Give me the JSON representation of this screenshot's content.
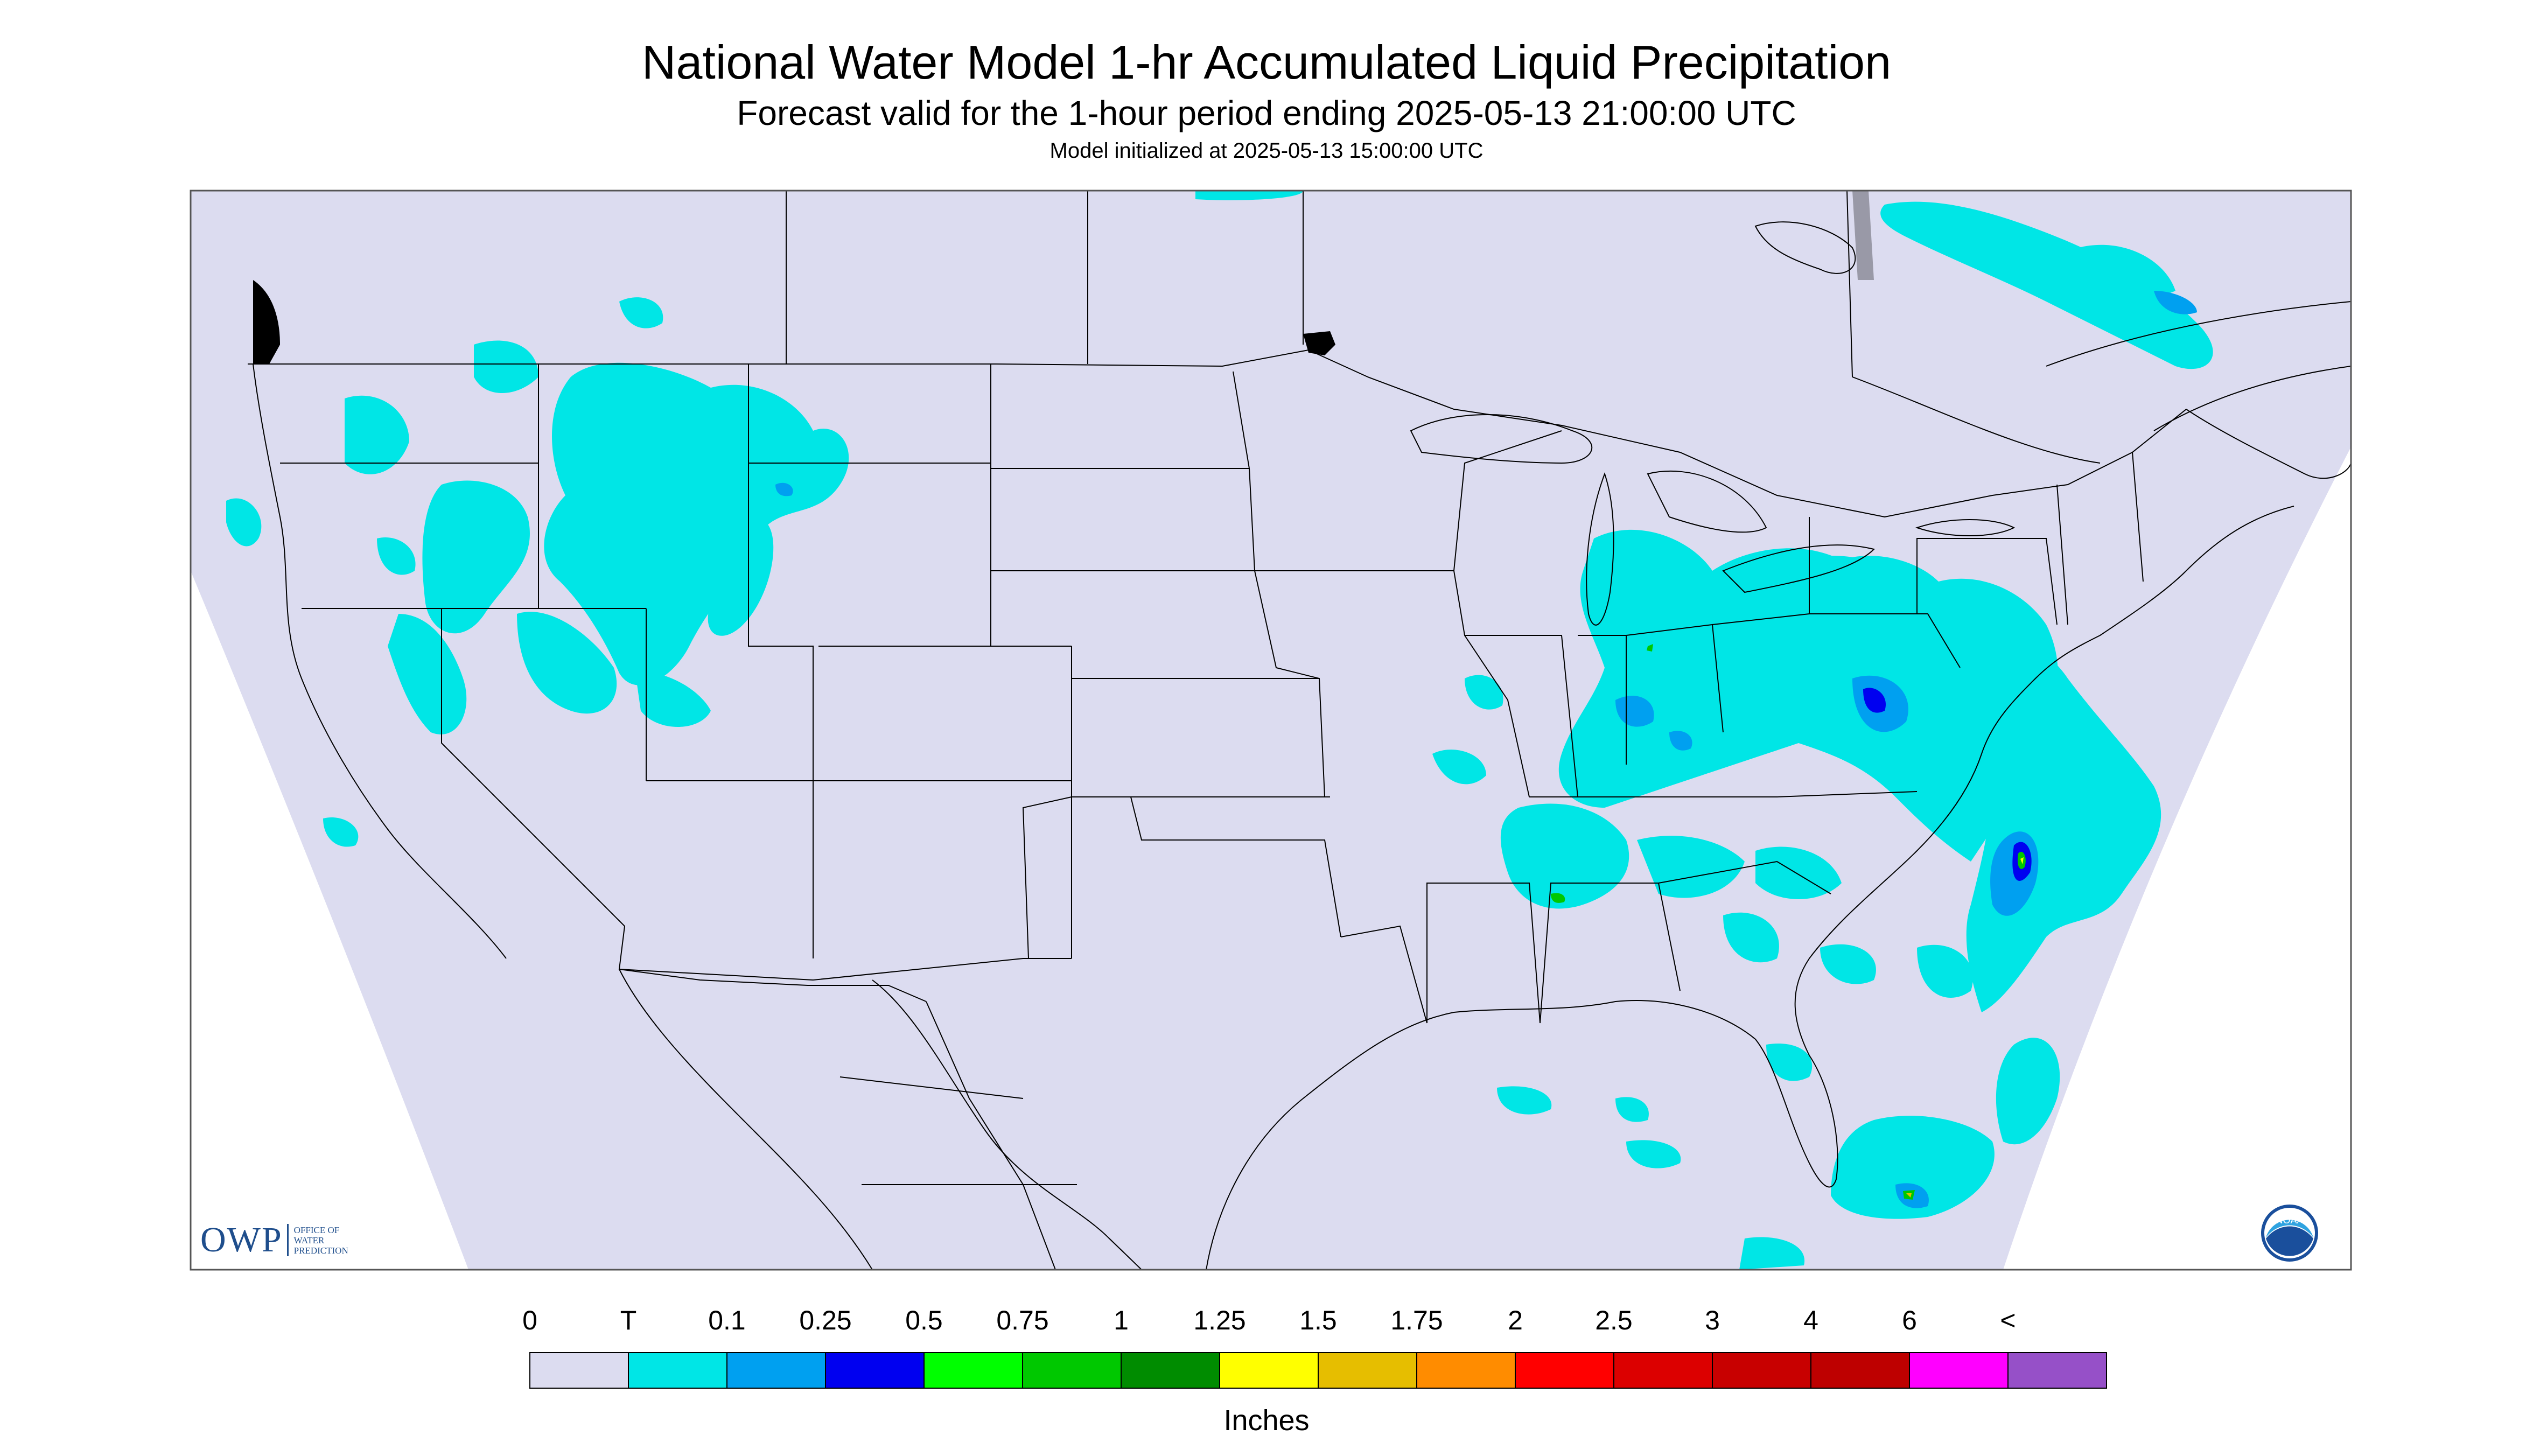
{
  "header": {
    "title": "National Water Model 1-hr Accumulated Liquid Precipitation",
    "subtitle": "Forecast valid for the 1-hour period ending 2025-05-13 21:00:00 UTC",
    "init": "Model initialized at 2025-05-13 15:00:00 UTC"
  },
  "legend": {
    "labels": [
      "0",
      "T",
      "0.1",
      "0.25",
      "0.5",
      "0.75",
      "1",
      "1.25",
      "1.5",
      "1.75",
      "2",
      "2.5",
      "3",
      "4",
      "6",
      "<"
    ],
    "colors": [
      "#dcdcf0",
      "#00e6e6",
      "#00a0f0",
      "#0000f0",
      "#00ff00",
      "#00c800",
      "#008c00",
      "#ffff00",
      "#e6be00",
      "#ff8c00",
      "#ff0000",
      "#dc0000",
      "#c80000",
      "#be0000",
      "#ff00ff",
      "#9650c8"
    ],
    "units": "Inches"
  },
  "logos": {
    "owp_main": "OWP",
    "owp_sub": [
      "OFFICE OF",
      "WATER",
      "PREDICTION"
    ],
    "noaa": "NOAA"
  },
  "map": {
    "background_color": "#dcdcf0",
    "outside_color": "#ffffff",
    "border_color": "#000000"
  }
}
